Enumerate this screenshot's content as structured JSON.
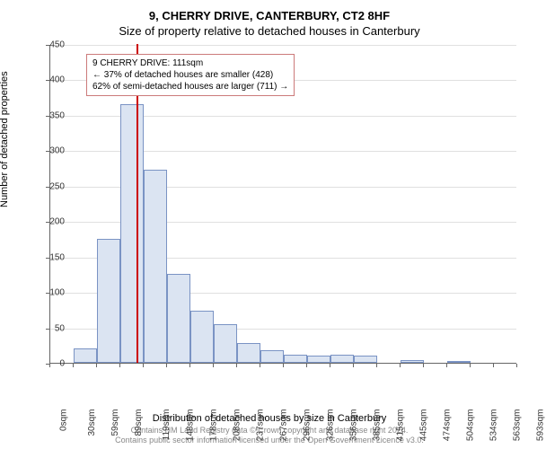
{
  "title_main": "9, CHERRY DRIVE, CANTERBURY, CT2 8HF",
  "title_sub": "Size of property relative to detached houses in Canterbury",
  "yaxis_label": "Number of detached properties",
  "xaxis_label": "Distribution of detached houses by size in Canterbury",
  "footer_line1": "Contains HM Land Registry data © Crown copyright and database right 2024.",
  "footer_line2": "Contains public sector information licensed under the Open Government Licence v3.0.",
  "chart": {
    "type": "histogram",
    "ylim": [
      0,
      450
    ],
    "ytick_step": 50,
    "yticks": [
      0,
      50,
      100,
      150,
      200,
      250,
      300,
      350,
      400,
      450
    ],
    "xtick_labels": [
      "0sqm",
      "30sqm",
      "59sqm",
      "89sqm",
      "119sqm",
      "148sqm",
      "178sqm",
      "208sqm",
      "237sqm",
      "267sqm",
      "296sqm",
      "326sqm",
      "356sqm",
      "385sqm",
      "415sqm",
      "445sqm",
      "474sqm",
      "504sqm",
      "534sqm",
      "563sqm",
      "593sqm"
    ],
    "bar_values": [
      0,
      20,
      175,
      365,
      272,
      125,
      73,
      55,
      28,
      18,
      12,
      10,
      11,
      10,
      0,
      4,
      0,
      2,
      0,
      0
    ],
    "bar_fill": "#dbe4f2",
    "bar_stroke": "#7a93c4",
    "grid_color": "#e0e0e0",
    "background_color": "#ffffff",
    "marker_x_value": 111,
    "marker_x_max": 600,
    "marker_color": "#cc0000",
    "annotation_border": "#cc7a7a",
    "annotation": {
      "line1": "9 CHERRY DRIVE: 111sqm",
      "line2": "← 37% of detached houses are smaller (428)",
      "line3": "62% of semi-detached houses are larger (711) →"
    }
  }
}
